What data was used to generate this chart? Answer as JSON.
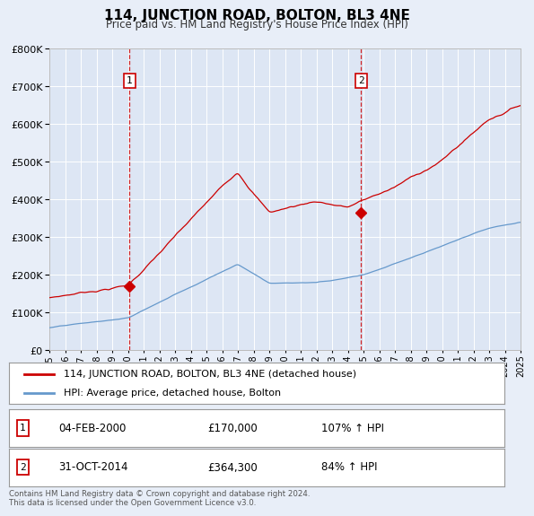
{
  "title": "114, JUNCTION ROAD, BOLTON, BL3 4NE",
  "subtitle": "Price paid vs. HM Land Registry's House Price Index (HPI)",
  "red_color": "#cc0000",
  "blue_color": "#6699cc",
  "background_color": "#e8eef8",
  "plot_bg_color": "#dde6f4",
  "grid_color": "#ffffff",
  "sale1_x": 2000.09,
  "sale1_y": 170000,
  "sale1_label": "1",
  "sale1_date": "04-FEB-2000",
  "sale1_price": "£170,000",
  "sale1_hpi": "107% ↑ HPI",
  "sale2_x": 2014.83,
  "sale2_y": 364300,
  "sale2_label": "2",
  "sale2_date": "31-OCT-2014",
  "sale2_price": "£364,300",
  "sale2_hpi": "84% ↑ HPI",
  "legend_line1": "114, JUNCTION ROAD, BOLTON, BL3 4NE (detached house)",
  "legend_line2": "HPI: Average price, detached house, Bolton",
  "footnote": "Contains HM Land Registry data © Crown copyright and database right 2024.\nThis data is licensed under the Open Government Licence v3.0.",
  "xmin": 1995,
  "xmax": 2025,
  "ylim": [
    0,
    800000
  ],
  "yticks": [
    0,
    100000,
    200000,
    300000,
    400000,
    500000,
    600000,
    700000,
    800000
  ]
}
